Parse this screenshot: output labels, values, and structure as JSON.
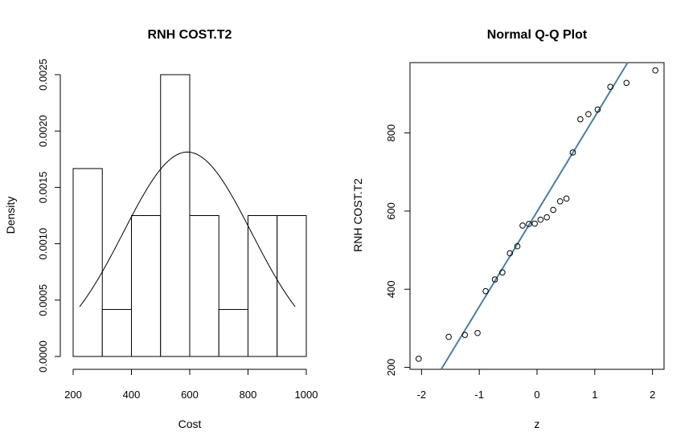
{
  "chart_data": [
    {
      "type": "bar",
      "subtype": "histogram-with-density-curve",
      "title": "RNH COST.T2",
      "xlabel": "Cost",
      "ylabel": "Density",
      "xlim": [
        200,
        1000
      ],
      "ylim": [
        0,
        0.0025
      ],
      "xticks": [
        200,
        400,
        600,
        800,
        1000
      ],
      "yticks": [
        0.0,
        0.0005,
        0.001,
        0.0015,
        0.002,
        0.0025
      ],
      "ytick_labels": [
        "0.0000",
        "0.0005",
        "0.0010",
        "0.0015",
        "0.0020",
        "0.0025"
      ],
      "bins": [
        {
          "x0": 200,
          "x1": 300,
          "density": 0.001667
        },
        {
          "x0": 300,
          "x1": 400,
          "density": 0.000417
        },
        {
          "x0": 400,
          "x1": 500,
          "density": 0.00125
        },
        {
          "x0": 500,
          "x1": 600,
          "density": 0.0025
        },
        {
          "x0": 600,
          "x1": 700,
          "density": 0.00125
        },
        {
          "x0": 700,
          "x1": 800,
          "density": 0.000417
        },
        {
          "x0": 800,
          "x1": 900,
          "density": 0.00125
        },
        {
          "x0": 900,
          "x1": 1000,
          "density": 0.00125
        }
      ],
      "curve": {
        "kind": "normal",
        "mean": 592,
        "sd": 220,
        "x_range": [
          222,
          962
        ]
      },
      "grid": false
    },
    {
      "type": "scatter",
      "subtype": "normal-qq",
      "title": "Normal Q-Q Plot",
      "xlabel": "z",
      "ylabel": "RNH COST.T2",
      "xlim": [
        -2.2,
        2.2
      ],
      "ylim": [
        195,
        980
      ],
      "xticks": [
        -2,
        -1,
        0,
        1,
        2
      ],
      "yticks": [
        200,
        400,
        600,
        800
      ],
      "points": [
        [
          -2.05,
          222
        ],
        [
          -1.53,
          278
        ],
        [
          -1.25,
          283
        ],
        [
          -1.03,
          288
        ],
        [
          -0.89,
          395
        ],
        [
          -0.73,
          425
        ],
        [
          -0.6,
          443
        ],
        [
          -0.47,
          492
        ],
        [
          -0.34,
          510
        ],
        [
          -0.25,
          563
        ],
        [
          -0.14,
          567
        ],
        [
          -0.04,
          568
        ],
        [
          0.06,
          578
        ],
        [
          0.17,
          584
        ],
        [
          0.28,
          603
        ],
        [
          0.4,
          625
        ],
        [
          0.51,
          632
        ],
        [
          0.62,
          750
        ],
        [
          0.75,
          835
        ],
        [
          0.89,
          848
        ],
        [
          1.05,
          860
        ],
        [
          1.27,
          918
        ],
        [
          1.55,
          928
        ],
        [
          2.05,
          960
        ]
      ],
      "reference_line": {
        "x": [
          -1.66,
          1.57
        ],
        "y": [
          195,
          980
        ]
      },
      "line_color": "#4a7fa0",
      "grid": false
    }
  ]
}
